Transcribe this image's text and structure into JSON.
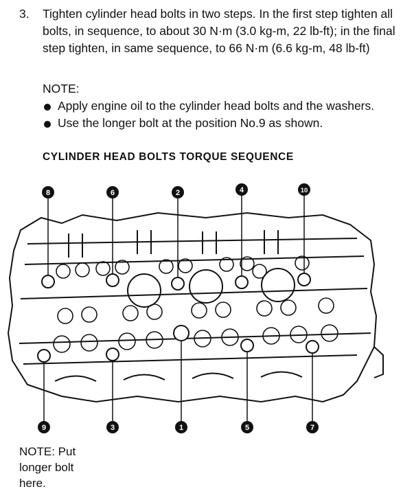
{
  "step": {
    "number": "3.",
    "text": "Tighten cylinder head bolts in two steps. In the first step tighten all bolts, in sequence, to about 30 N·m (3.0 kg-m, 22 lb-ft); in the final step tighten, in same sequence, to 66 N·m (6.6 kg-m, 48 lb-ft)"
  },
  "note": {
    "label": "NOTE:",
    "items": [
      "Apply engine oil to the cylinder head bolts and the washers.",
      "Use the longer bolt at the position No.9 as shown."
    ]
  },
  "figure": {
    "title": "CYLINDER HEAD BOLTS TORQUE SEQUENCE",
    "callouts_top": [
      "8",
      "6",
      "2",
      "4",
      "10"
    ],
    "callouts_bottom": [
      "9",
      "3",
      "1",
      "5",
      "7"
    ],
    "footnote": "NOTE: Put longer bolt here."
  }
}
